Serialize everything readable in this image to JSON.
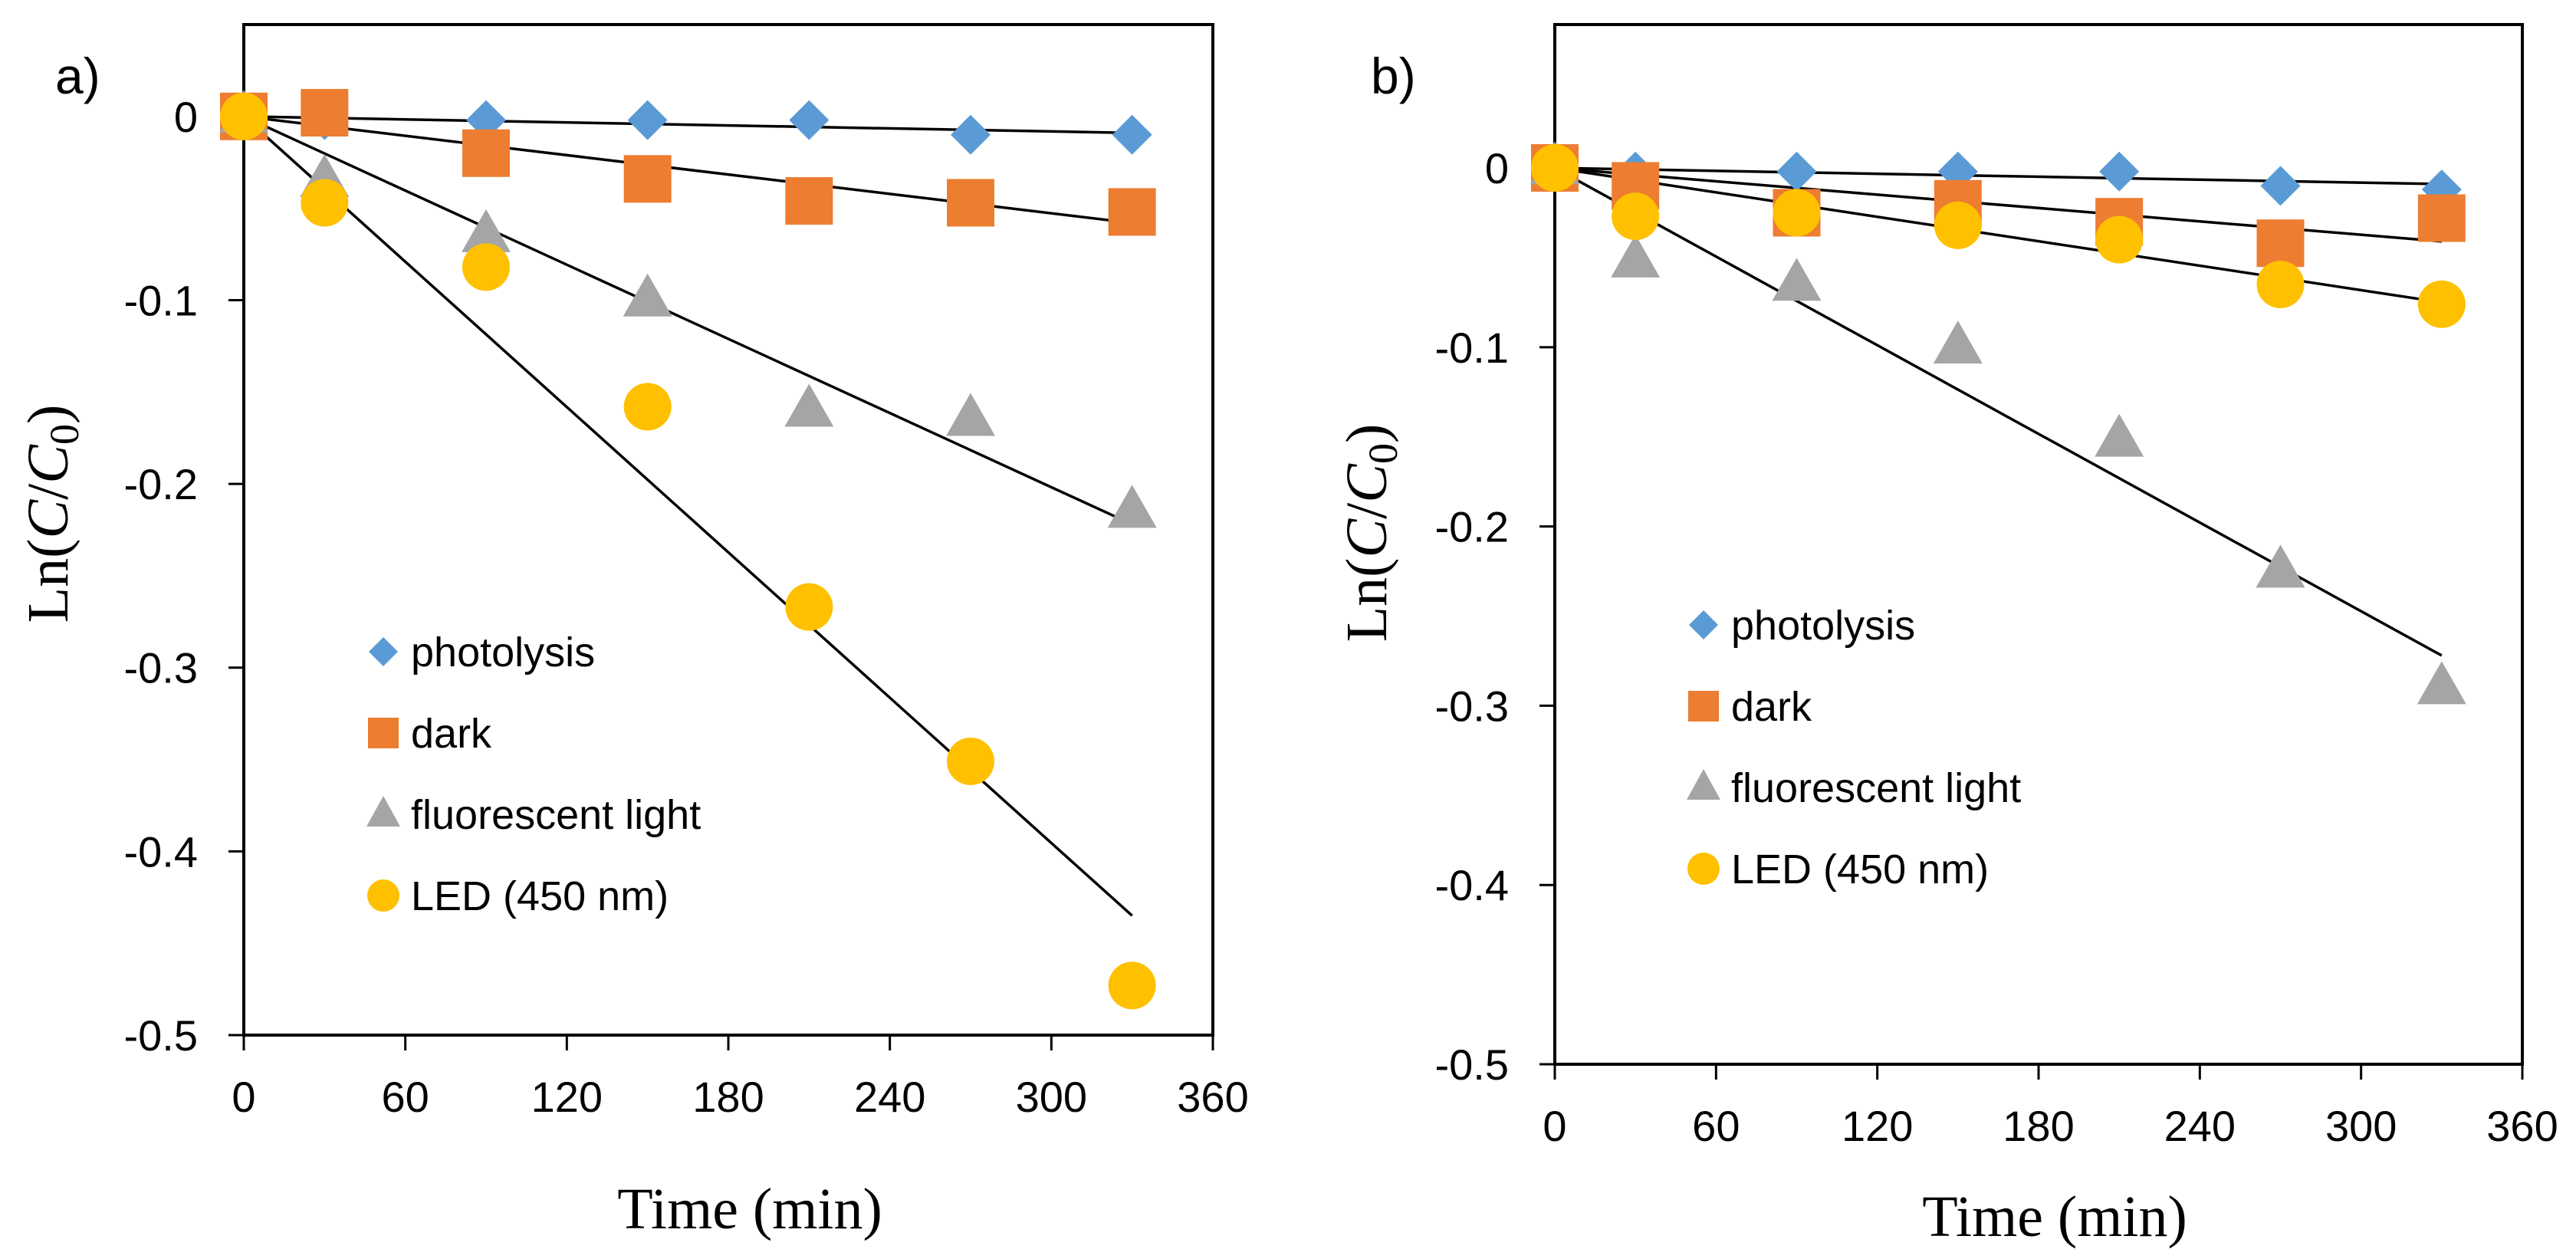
{
  "chart_data": [
    {
      "type": "scatter",
      "panel_label": "a)",
      "xlabel": "Time (min)",
      "ylabel": {
        "prefix": "Ln(",
        "c": "C",
        "slash": "/",
        "c0": "C",
        "sub": "0",
        "suffix": ")"
      },
      "xlim": [
        0,
        360
      ],
      "ylim": [
        -0.5,
        0.05
      ],
      "xticks": [
        0,
        60,
        120,
        180,
        240,
        300,
        360
      ],
      "yticks": [
        0,
        -0.1,
        -0.2,
        -0.3,
        -0.4,
        -0.5
      ],
      "legend_position": "center-left",
      "series": [
        {
          "name": "photolysis",
          "marker": "diamond",
          "color": "#5B9BD5",
          "x": [
            0,
            30,
            90,
            150,
            210,
            270,
            330
          ],
          "y": [
            0,
            -0.002,
            -0.002,
            -0.002,
            -0.002,
            -0.01,
            -0.01
          ],
          "fit": {
            "x": [
              0,
              330
            ],
            "y": [
              0,
              -0.009
            ]
          }
        },
        {
          "name": "dark",
          "marker": "square",
          "color": "#ED7D31",
          "x": [
            0,
            30,
            90,
            150,
            210,
            270,
            330
          ],
          "y": [
            0,
            0.002,
            -0.02,
            -0.034,
            -0.046,
            -0.047,
            -0.052
          ],
          "fit": {
            "x": [
              0,
              330
            ],
            "y": [
              0,
              -0.058
            ]
          }
        },
        {
          "name": "fluorescent light",
          "marker": "triangle",
          "color": "#A5A5A5",
          "x": [
            0,
            30,
            90,
            150,
            210,
            270,
            330
          ],
          "y": [
            0,
            -0.035,
            -0.065,
            -0.1,
            -0.16,
            -0.165,
            -0.215
          ],
          "fit": {
            "x": [
              0,
              330
            ],
            "y": [
              0,
              -0.222
            ]
          }
        },
        {
          "name": "LED (450 nm)",
          "marker": "circle",
          "color": "#FFC000",
          "x": [
            0,
            30,
            90,
            150,
            210,
            270,
            330
          ],
          "y": [
            0,
            -0.047,
            -0.082,
            -0.158,
            -0.267,
            -0.351,
            -0.473
          ],
          "fit": {
            "x": [
              0,
              330
            ],
            "y": [
              0,
              -0.435
            ]
          }
        }
      ]
    },
    {
      "type": "scatter",
      "panel_label": "b)",
      "xlabel": "Time (min)",
      "ylabel": {
        "prefix": "Ln(",
        "c": "C",
        "slash": "/",
        "c0": "C",
        "sub": "0",
        "suffix": ")"
      },
      "xlim": [
        0,
        360
      ],
      "ylim": [
        -0.5,
        0.08
      ],
      "xticks": [
        0,
        60,
        120,
        180,
        240,
        300,
        360
      ],
      "yticks": [
        0,
        -0.1,
        -0.2,
        -0.3,
        -0.4,
        -0.5
      ],
      "legend_position": "center",
      "series": [
        {
          "name": "photolysis",
          "marker": "diamond",
          "color": "#5B9BD5",
          "x": [
            0,
            30,
            90,
            150,
            210,
            270,
            330
          ],
          "y": [
            0,
            -0.002,
            -0.002,
            -0.002,
            -0.002,
            -0.01,
            -0.012
          ],
          "fit": {
            "x": [
              0,
              330
            ],
            "y": [
              0,
              -0.009
            ]
          }
        },
        {
          "name": "dark",
          "marker": "square",
          "color": "#ED7D31",
          "x": [
            0,
            30,
            90,
            150,
            210,
            270,
            330
          ],
          "y": [
            0,
            -0.01,
            -0.025,
            -0.02,
            -0.03,
            -0.042,
            -0.028
          ],
          "fit": {
            "x": [
              0,
              330
            ],
            "y": [
              0,
              -0.041
            ]
          }
        },
        {
          "name": "fluorescent light",
          "marker": "triangle",
          "color": "#A5A5A5",
          "x": [
            0,
            30,
            90,
            150,
            210,
            270,
            330
          ],
          "y": [
            0,
            -0.052,
            -0.065,
            -0.1,
            -0.152,
            -0.225,
            -0.29
          ],
          "fit": {
            "x": [
              0,
              330
            ],
            "y": [
              0,
              -0.272
            ]
          }
        },
        {
          "name": "LED (450 nm)",
          "marker": "circle",
          "color": "#FFC000",
          "x": [
            0,
            30,
            90,
            150,
            210,
            270,
            330
          ],
          "y": [
            0,
            -0.027,
            -0.025,
            -0.032,
            -0.04,
            -0.065,
            -0.076
          ],
          "fit": {
            "x": [
              0,
              330
            ],
            "y": [
              0,
              -0.075
            ]
          }
        }
      ]
    }
  ]
}
